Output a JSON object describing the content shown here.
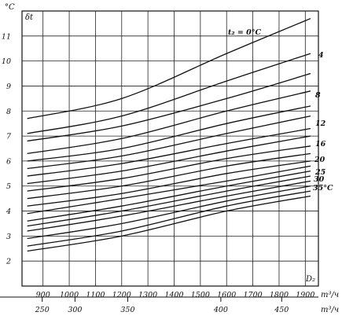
{
  "chart_data": {
    "type": "line",
    "y_unit": "°C",
    "y_label": "δt",
    "x_label": "D₂",
    "x_unit": "m³/ч",
    "x2_unit": "m³/ч",
    "ylim": [
      1,
      12
    ],
    "xlim": [
      820,
      1950
    ],
    "x_ticks": [
      900,
      1000,
      1100,
      1200,
      1300,
      1400,
      1500,
      1600,
      1700,
      1800,
      1900
    ],
    "y_ticks": [
      2,
      3,
      4,
      5,
      6,
      7,
      8,
      9,
      10,
      11
    ],
    "x2_ticks": [
      250,
      300,
      350,
      400,
      450
    ],
    "x2_tick_x": [
      897,
      1022,
      1223,
      1578,
      1810
    ],
    "grid": true,
    "series": [
      {
        "name": "t₂ = 0°C",
        "x": [
          840,
          1200,
          1600,
          1920
        ],
        "y": [
          7.7,
          8.5,
          10.3,
          11.7
        ]
      },
      {
        "name": "4",
        "x": [
          840,
          1200,
          1600,
          1920
        ],
        "y": [
          7.1,
          7.8,
          9.2,
          10.3
        ]
      },
      {
        "name": "",
        "x": [
          840,
          1200,
          1600,
          1920
        ],
        "y": [
          6.8,
          7.4,
          8.5,
          9.5
        ]
      },
      {
        "name": "8",
        "x": [
          840,
          1200,
          1600,
          1920
        ],
        "y": [
          6.3,
          6.9,
          8.0,
          8.8
        ]
      },
      {
        "name": "",
        "x": [
          840,
          1200,
          1600,
          1920
        ],
        "y": [
          6.0,
          6.5,
          7.5,
          8.2
        ]
      },
      {
        "name": "12",
        "x": [
          840,
          1200,
          1600,
          1920
        ],
        "y": [
          5.7,
          6.2,
          7.1,
          7.8
        ]
      },
      {
        "name": "",
        "x": [
          840,
          1200,
          1600,
          1920
        ],
        "y": [
          5.4,
          5.9,
          6.7,
          7.3
        ]
      },
      {
        "name": "16",
        "x": [
          840,
          1200,
          1600,
          1920
        ],
        "y": [
          5.1,
          5.6,
          6.4,
          7.0
        ]
      },
      {
        "name": "",
        "x": [
          840,
          1200,
          1600,
          1920
        ],
        "y": [
          4.8,
          5.3,
          6.1,
          6.6
        ]
      },
      {
        "name": "20",
        "x": [
          840,
          1200,
          1600,
          1920
        ],
        "y": [
          4.5,
          5.0,
          5.8,
          6.3
        ]
      },
      {
        "name": "",
        "x": [
          840,
          1200,
          1600,
          1920
        ],
        "y": [
          4.2,
          4.7,
          5.5,
          6.0
        ]
      },
      {
        "name": "",
        "x": [
          840,
          1200,
          1600,
          1920
        ],
        "y": [
          3.9,
          4.5,
          5.2,
          5.8
        ]
      },
      {
        "name": "25",
        "x": [
          840,
          1200,
          1600,
          1920
        ],
        "y": [
          3.6,
          4.2,
          5.0,
          5.6
        ]
      },
      {
        "name": "",
        "x": [
          840,
          1200,
          1600,
          1920
        ],
        "y": [
          3.4,
          4.0,
          4.8,
          5.4
        ]
      },
      {
        "name": "30",
        "x": [
          840,
          1200,
          1600,
          1920
        ],
        "y": [
          3.2,
          3.8,
          4.6,
          5.2
        ]
      },
      {
        "name": "",
        "x": [
          840,
          1200,
          1600,
          1920
        ],
        "y": [
          2.9,
          3.5,
          4.4,
          5.0
        ]
      },
      {
        "name": "",
        "x": [
          840,
          1200,
          1600,
          1920
        ],
        "y": [
          2.6,
          3.2,
          4.2,
          4.8
        ]
      },
      {
        "name": "35°C",
        "x": [
          840,
          1200,
          1600,
          1920
        ],
        "y": [
          2.4,
          3.0,
          4.0,
          4.6
        ]
      }
    ]
  }
}
